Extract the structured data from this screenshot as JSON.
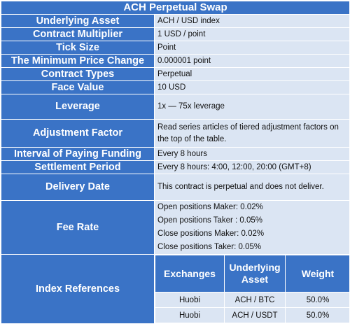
{
  "title": "ACH Perpetual Swap",
  "rows": [
    {
      "label": "Underlying Asset",
      "value": "ACH / USD index"
    },
    {
      "label": "Contract Multiplier",
      "value": "1 USD / point"
    },
    {
      "label": "Tick Size",
      "value": "Point"
    },
    {
      "label": "The Minimum Price Change",
      "value": "0.000001 point"
    },
    {
      "label": "Contract Types",
      "value": "Perpetual"
    },
    {
      "label": "Face Value",
      "value": "10 USD"
    },
    {
      "label": "Leverage",
      "value": "1x — 75x leverage"
    },
    {
      "label": "Adjustment Factor",
      "value": "Read series articles of tiered adjustment factors on the top of the table."
    },
    {
      "label": "Interval of Paying Funding",
      "value": "Every 8 hours"
    },
    {
      "label": "Settlement Period",
      "value": "Every 8 hours: 4:00, 12:00, 20:00 (GMT+8)"
    },
    {
      "label": "Delivery Date",
      "value": "This contract is perpetual and does not deliver."
    }
  ],
  "fee_rate": {
    "label": "Fee Rate",
    "lines": [
      "Open positions Maker: 0.02%",
      "Open positions Taker : 0.05%",
      "Close positions Maker: 0.02%",
      "Close positions Taker:  0.05%"
    ]
  },
  "index_references": {
    "label": "Index References",
    "headers": [
      "Exchanges",
      "Underlying Asset",
      "Weight"
    ],
    "rows": [
      [
        "Huobi",
        "ACH / BTC",
        "50.0%"
      ],
      [
        "Huobi",
        "ACH / USDT",
        "50.0%"
      ]
    ]
  },
  "colors": {
    "header_bg": "#3a73c6",
    "value_bg": "#dbe5f3"
  }
}
